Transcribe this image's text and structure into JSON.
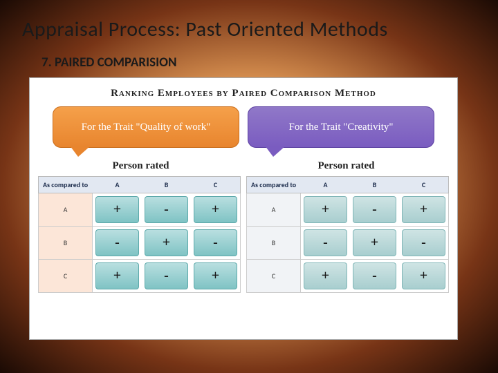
{
  "slide": {
    "title": "Appraisal Process: Past Oriented Methods",
    "subtitle": "7. PAIRED COMPARISION"
  },
  "figure": {
    "type": "infographic",
    "title": "Ranking Employees by Paired Comparison Method",
    "background_color": "#ffffff",
    "bubble_left": {
      "text": "For the Trait \"Quality of work\"",
      "color": "#e8852e"
    },
    "bubble_right": {
      "text": "For the Trait \"Creativity\"",
      "color": "#7a5cc0"
    },
    "rated_label": "Person rated",
    "header0": "As compared to",
    "columns": [
      "A",
      "B",
      "C"
    ],
    "row_labels": [
      "A",
      "B",
      "C"
    ],
    "left_table": {
      "cell_bg": "#7fc3c4",
      "row_bg": "#fce6d8",
      "rows": [
        [
          "+",
          "-",
          "+"
        ],
        [
          "-",
          "+",
          "-"
        ],
        [
          "+",
          "-",
          "+"
        ]
      ]
    },
    "right_table": {
      "cell_bg": "#a8cecf",
      "row_bg": "#f1f3f6",
      "rows": [
        [
          "+",
          "-",
          "+"
        ],
        [
          "-",
          "+",
          "-"
        ],
        [
          "+",
          "-",
          "+"
        ]
      ]
    }
  }
}
